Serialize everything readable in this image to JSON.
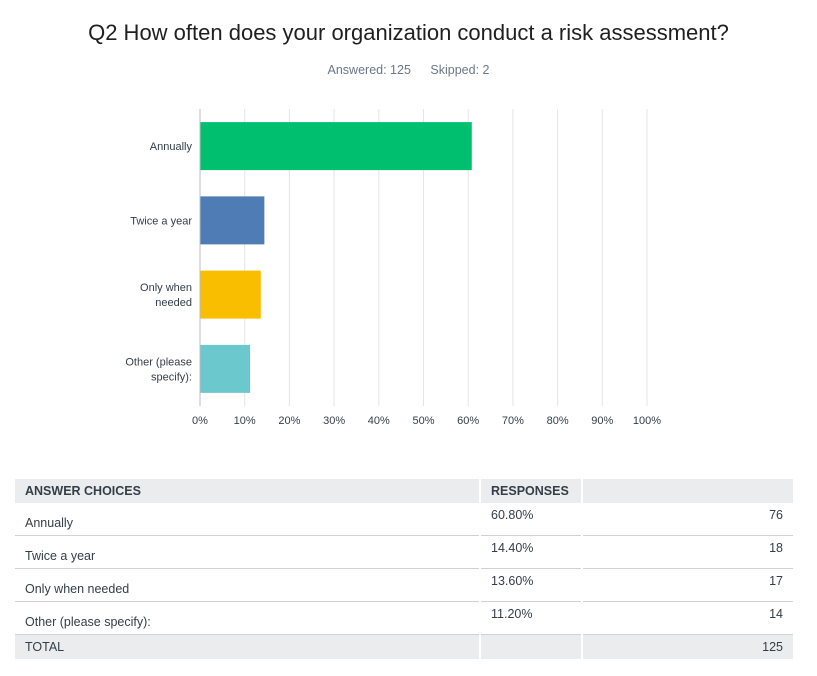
{
  "question": {
    "title": "Q2 How often does your organization conduct a risk assessment?",
    "answered": "Answered: 125",
    "skipped": "Skipped: 2"
  },
  "chart_data": {
    "type": "bar",
    "orientation": "horizontal",
    "categories": [
      [
        "Annually"
      ],
      [
        "Twice a year"
      ],
      [
        "Only when",
        "needed"
      ],
      [
        "Other (please",
        "specify):"
      ]
    ],
    "values": [
      60.8,
      14.4,
      13.6,
      11.2
    ],
    "colors": [
      "#00bf6f",
      "#507cb6",
      "#f9be00",
      "#6bc8cd"
    ],
    "xlim": [
      0,
      100
    ],
    "ticks": [
      "0%",
      "10%",
      "20%",
      "30%",
      "40%",
      "50%",
      "60%",
      "70%",
      "80%",
      "90%",
      "100%"
    ],
    "grid": true,
    "legend": "none"
  },
  "table": {
    "headers": [
      "ANSWER CHOICES",
      "RESPONSES",
      ""
    ],
    "rows": [
      {
        "choice": "Annually",
        "pct": "60.80%",
        "count": "76"
      },
      {
        "choice": "Twice a year",
        "pct": "14.40%",
        "count": "18"
      },
      {
        "choice": "Only when needed",
        "pct": "13.60%",
        "count": "17"
      },
      {
        "choice": "Other (please specify):",
        "pct": "11.20%",
        "count": "14"
      }
    ],
    "total": {
      "label": "TOTAL",
      "count": "125"
    }
  }
}
